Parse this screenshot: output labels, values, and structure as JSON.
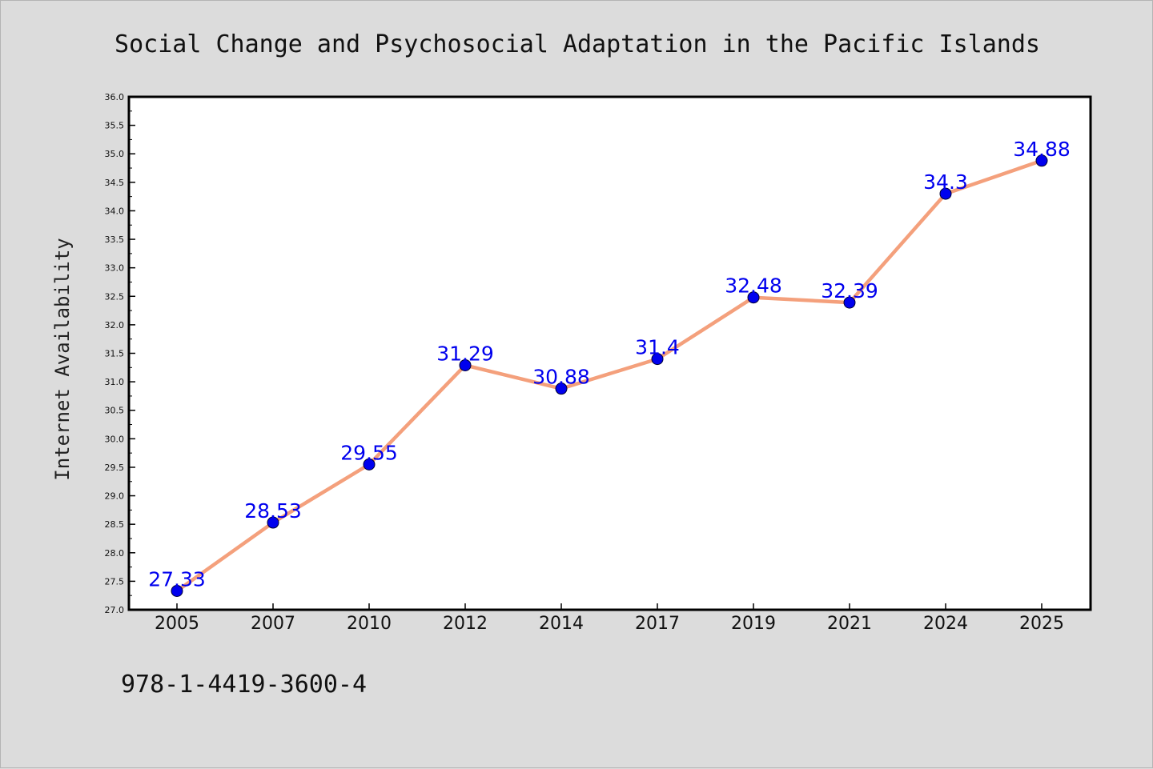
{
  "chart_data": {
    "type": "line",
    "title": "Social Change and Psychosocial Adaptation in the Pacific Islands",
    "xlabel": "",
    "ylabel": "Internet Availability",
    "categories": [
      "2005",
      "2007",
      "2010",
      "2012",
      "2014",
      "2017",
      "2019",
      "2021",
      "2024",
      "2025"
    ],
    "values": [
      27.33,
      28.53,
      29.55,
      31.29,
      30.88,
      31.4,
      32.48,
      32.39,
      34.3,
      34.88
    ],
    "data_labels": [
      "27.33",
      "28.53",
      "29.55",
      "31.29",
      "30.88",
      "31.4",
      "32.48",
      "32.39",
      "34.3",
      "34.88"
    ],
    "ylim": [
      27.0,
      36.0
    ],
    "yticks": [
      "27.0",
      "27.5",
      "28.0",
      "28.5",
      "29.0",
      "29.5",
      "30.0",
      "30.5",
      "31.0",
      "31.5",
      "32.0",
      "32.5",
      "33.0",
      "33.5",
      "34.0",
      "34.5",
      "35.0",
      "35.5",
      "36.0"
    ],
    "grid": false,
    "legend": "none",
    "colors": {
      "line": "#f4a07c",
      "marker": "#0000ee",
      "label": "#0000ee",
      "plot_bg": "#ffffff",
      "page_bg": "#dcdcdc"
    }
  },
  "footer": {
    "isbn": "978-1-4419-3600-4"
  }
}
